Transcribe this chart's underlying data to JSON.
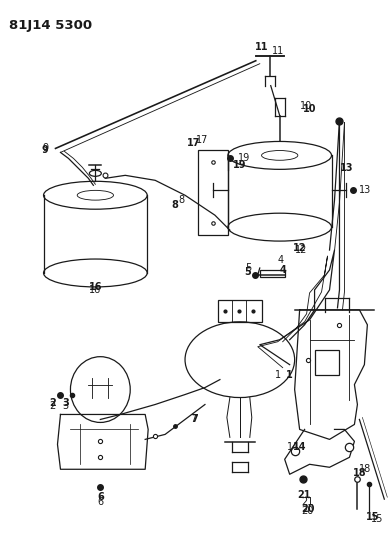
{
  "title": "81J14 5300",
  "bg_color": "#ffffff",
  "line_color": "#1a1a1a",
  "fig_width": 3.89,
  "fig_height": 5.33,
  "dpi": 100
}
